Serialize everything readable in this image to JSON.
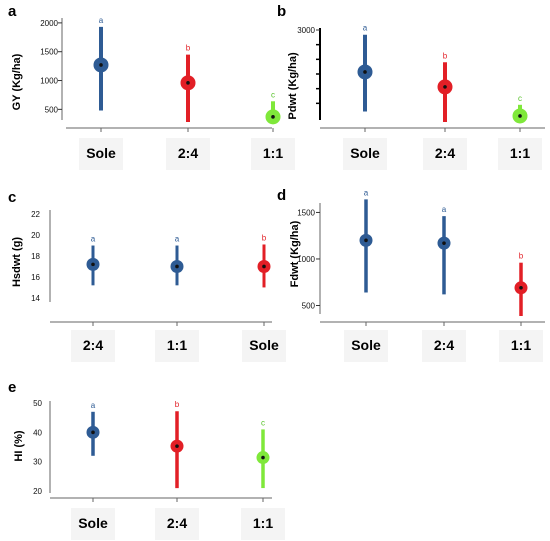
{
  "chart_data": [
    {
      "panel": "a",
      "type": "scatter",
      "ylabel": "GY (Kg/ha)",
      "yticks": [
        "500",
        "1000",
        "1500",
        "2000"
      ],
      "ylim": [
        350,
        2050
      ],
      "categories": [
        "Sole",
        "2:4",
        "1:1"
      ],
      "points": [
        {
          "category": "Sole",
          "mean": 1270,
          "low": 480,
          "high": 1930,
          "label": "a",
          "color": "#2e5b94"
        },
        {
          "category": "2:4",
          "mean": 960,
          "low": 270,
          "high": 1450,
          "label": "b",
          "color": "#e21f26"
        },
        {
          "category": "1:1",
          "mean": 370,
          "low": 250,
          "high": 640,
          "label": "c",
          "color": "#7fe83a"
        }
      ]
    },
    {
      "panel": "b",
      "type": "scatter",
      "ylabel": "Pdwt (Kg/ha)",
      "yticks": [
        "3000"
      ],
      "ylim": [
        0,
        3000
      ],
      "categories": [
        "Sole",
        "2:4",
        "1:1"
      ],
      "points": [
        {
          "category": "Sole",
          "mean": 1570,
          "low": 220,
          "high": 2840,
          "label": "a",
          "color": "#2e5b94"
        },
        {
          "category": "2:4",
          "mean": 1060,
          "low": -150,
          "high": 1900,
          "label": "b",
          "color": "#e21f26"
        },
        {
          "category": "1:1",
          "mean": 70,
          "low": -220,
          "high": 450,
          "label": "c",
          "color": "#7fe83a"
        }
      ]
    },
    {
      "panel": "c",
      "type": "scatter",
      "ylabel": "Hsdwt (g)",
      "yticks": [
        "14",
        "16",
        "18",
        "20",
        "22"
      ],
      "ylim": [
        13.8,
        22.2
      ],
      "categories": [
        "2:4",
        "1:1",
        "Sole"
      ],
      "points": [
        {
          "category": "2:4",
          "mean": 17.2,
          "low": 15.2,
          "high": 19.0,
          "label": "a",
          "color": "#2e5b94"
        },
        {
          "category": "1:1",
          "mean": 17.0,
          "low": 15.2,
          "high": 19.0,
          "label": "a",
          "color": "#2e5b94"
        },
        {
          "category": "Sole",
          "mean": 17.0,
          "low": 15.0,
          "high": 19.1,
          "label": "b",
          "color": "#e21f26"
        }
      ]
    },
    {
      "panel": "d",
      "type": "scatter",
      "ylabel": "Fdwt (Kg/ha)",
      "yticks": [
        "500",
        "1000",
        "1500"
      ],
      "ylim": [
        430,
        1580
      ],
      "categories": [
        "Sole",
        "2:4",
        "1:1"
      ],
      "points": [
        {
          "category": "Sole",
          "mean": 1200,
          "low": 640,
          "high": 1640,
          "label": "a",
          "color": "#2e5b94"
        },
        {
          "category": "2:4",
          "mean": 1170,
          "low": 620,
          "high": 1460,
          "label": "a",
          "color": "#2e5b94"
        },
        {
          "category": "1:1",
          "mean": 690,
          "low": 360,
          "high": 960,
          "label": "b",
          "color": "#e21f26"
        }
      ]
    },
    {
      "panel": "e",
      "type": "scatter",
      "ylabel": "HI (%)",
      "yticks": [
        "20",
        "30",
        "40",
        "50"
      ],
      "ylim": [
        20,
        50
      ],
      "categories": [
        "Sole",
        "2:4",
        "1:1"
      ],
      "points": [
        {
          "category": "Sole",
          "mean": 40.0,
          "low": 32.0,
          "high": 47.0,
          "label": "a",
          "color": "#2e5b94"
        },
        {
          "category": "2:4",
          "mean": 35.3,
          "low": 21.0,
          "high": 47.2,
          "label": "b",
          "color": "#e21f26"
        },
        {
          "category": "1:1",
          "mean": 31.4,
          "low": 21.0,
          "high": 41.0,
          "label": "c",
          "color": "#7fe83a"
        }
      ]
    }
  ],
  "colors": {
    "label_a": "#2e5b94",
    "label_b": "#e21f26",
    "label_c": "#58c22a"
  }
}
